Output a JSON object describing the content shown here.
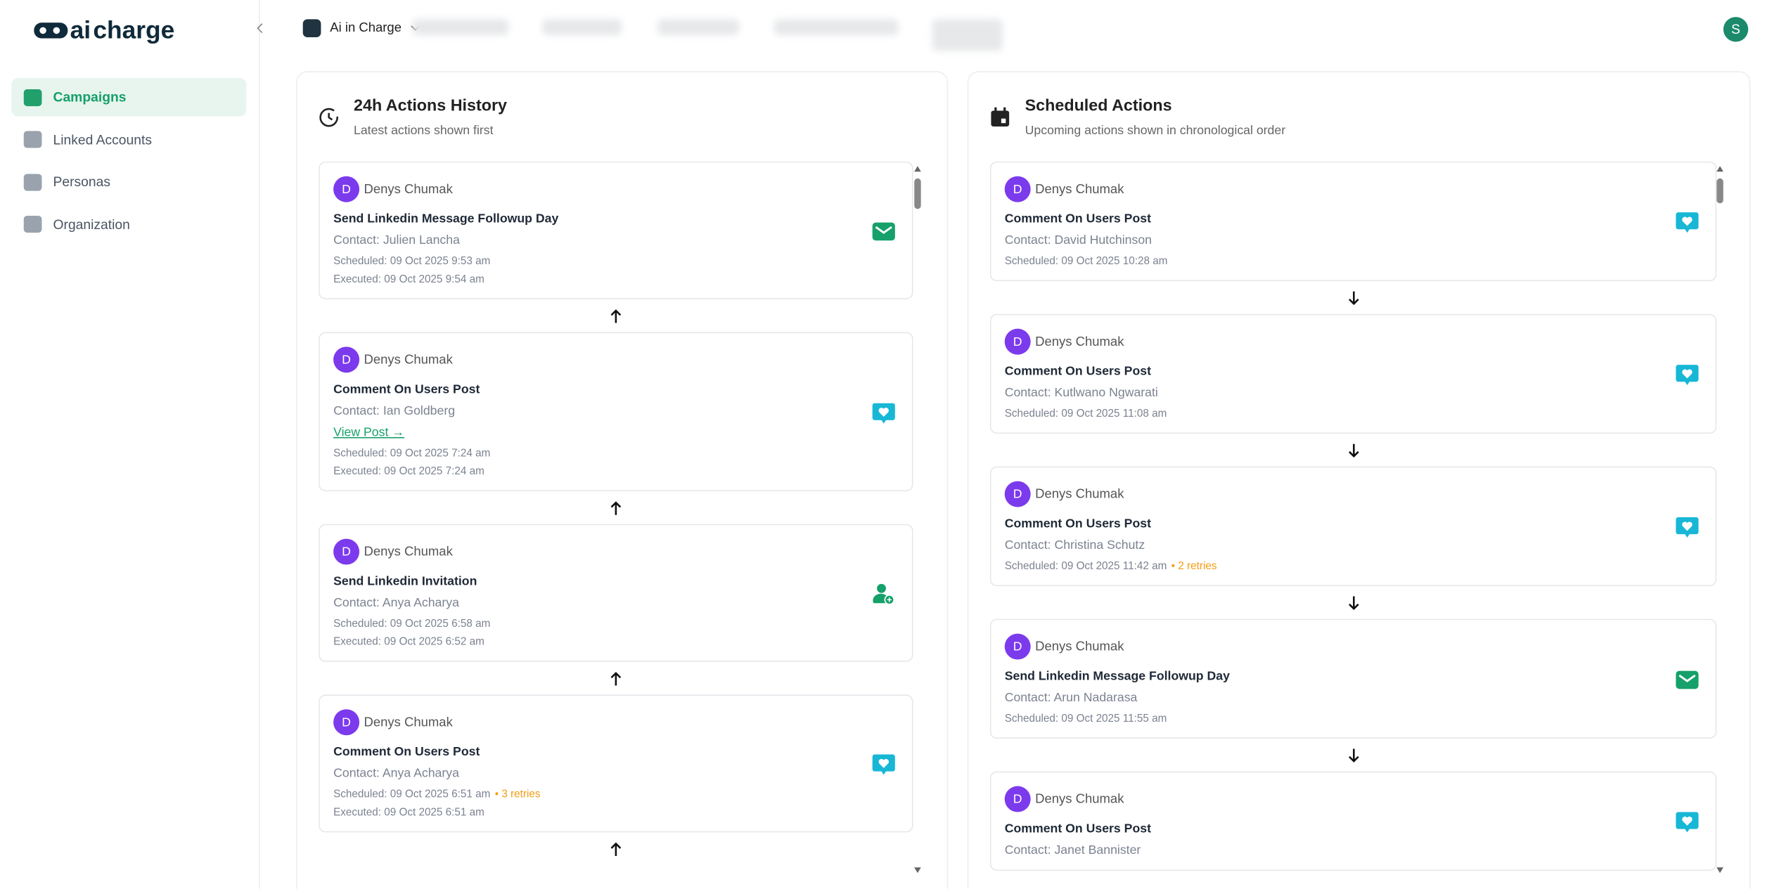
{
  "logo": {
    "left": "ai",
    "right": "charge"
  },
  "sidebar": {
    "items": [
      "Campaigns",
      "Linked Accounts",
      "Personas",
      "Organization"
    ]
  },
  "header": {
    "workspace": "Ai in Charge",
    "avatar": "S"
  },
  "history": {
    "title": "24h Actions History",
    "subtitle": "Latest actions shown first",
    "cards": [
      {
        "initial": "D",
        "user": "Denys Chumak",
        "action": "Send Linkedin Message Followup Day",
        "contact": "Contact: Julien Lancha",
        "scheduled": "Scheduled: 09 Oct 2025 9:53 am",
        "executed": "Executed: 09 Oct 2025 9:54 am",
        "icon": "message"
      },
      {
        "initial": "D",
        "user": "Denys Chumak",
        "action": "Comment On Users Post",
        "contact": "Contact: Ian Goldberg",
        "link": "View Post →",
        "scheduled": "Scheduled: 09 Oct 2025 7:24 am",
        "executed": "Executed: 09 Oct 2025 7:24 am",
        "icon": "comment"
      },
      {
        "initial": "D",
        "user": "Denys Chumak",
        "action": "Send Linkedin Invitation",
        "contact": "Contact: Anya Acharya",
        "scheduled": "Scheduled: 09 Oct 2025 6:58 am",
        "executed": "Executed: 09 Oct 2025 6:52 am",
        "icon": "invite"
      },
      {
        "initial": "D",
        "user": "Denys Chumak",
        "action": "Comment On Users Post",
        "contact": "Contact: Anya Acharya",
        "scheduled": "Scheduled: 09 Oct 2025 6:51 am",
        "retries": "• 3 retries",
        "executed": "Executed: 09 Oct 2025 6:51 am",
        "icon": "comment"
      }
    ]
  },
  "scheduled": {
    "title": "Scheduled Actions",
    "subtitle": "Upcoming actions shown in chronological order",
    "cards": [
      {
        "initial": "D",
        "user": "Denys Chumak",
        "action": "Comment On Users Post",
        "contact": "Contact: David Hutchinson",
        "scheduled": "Scheduled: 09 Oct 2025 10:28 am",
        "icon": "comment"
      },
      {
        "initial": "D",
        "user": "Denys Chumak",
        "action": "Comment On Users Post",
        "contact": "Contact: Kutlwano Ngwarati",
        "scheduled": "Scheduled: 09 Oct 2025 11:08 am",
        "icon": "comment"
      },
      {
        "initial": "D",
        "user": "Denys Chumak",
        "action": "Comment On Users Post",
        "contact": "Contact: Christina Schutz",
        "scheduled": "Scheduled: 09 Oct 2025 11:42 am",
        "retries": "• 2 retries",
        "icon": "comment"
      },
      {
        "initial": "D",
        "user": "Denys Chumak",
        "action": "Send Linkedin Message Followup Day",
        "contact": "Contact: Arun Nadarasa",
        "scheduled": "Scheduled: 09 Oct 2025 11:55 am",
        "icon": "message"
      },
      {
        "initial": "D",
        "user": "Denys Chumak",
        "action": "Comment On Users Post",
        "contact": "Contact: Janet Bannister",
        "icon": "comment"
      }
    ]
  }
}
